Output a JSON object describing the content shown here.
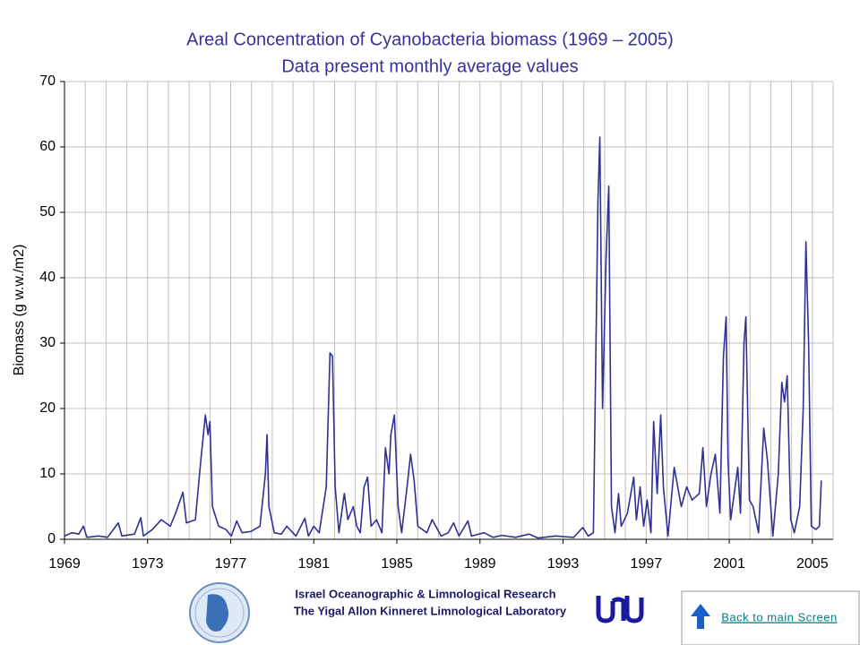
{
  "chart_data": {
    "type": "line",
    "title": "Areal Concentration of Cyanobacteria biomass (1969 – 2005)",
    "subtitle": "Data present monthly average values",
    "ylabel": "Biomass (g w.w./m2)",
    "xlim": [
      1969,
      2006
    ],
    "ylim": [
      0,
      70
    ],
    "xticks": [
      1969,
      1973,
      1977,
      1981,
      1985,
      1989,
      1993,
      1997,
      2001,
      2005
    ],
    "x_minor_ticks": [
      1969,
      1970,
      1971,
      1972,
      1973,
      1974,
      1975,
      1976,
      1977,
      1978,
      1979,
      1980,
      1981,
      1982,
      1983,
      1984,
      1985,
      1986,
      1987,
      1988,
      1989,
      1990,
      1991,
      1992,
      1993,
      1994,
      1995,
      1996,
      1997,
      1998,
      1999,
      2000,
      2001,
      2002,
      2003,
      2004,
      2005,
      2006
    ],
    "yticks": [
      0,
      10,
      20,
      30,
      40,
      50,
      60,
      70
    ],
    "grid": true,
    "x": [
      1969.0,
      1969.35,
      1969.69,
      1969.91,
      1970.08,
      1970.64,
      1971.07,
      1971.59,
      1971.76,
      1972.37,
      1972.67,
      1972.8,
      1973.23,
      1973.66,
      1974.09,
      1974.35,
      1974.7,
      1974.87,
      1975.3,
      1975.56,
      1975.78,
      1975.91,
      1976.0,
      1976.12,
      1976.42,
      1976.77,
      1977.03,
      1977.29,
      1977.55,
      1977.98,
      1978.41,
      1978.67,
      1978.75,
      1978.84,
      1979.1,
      1979.44,
      1979.7,
      1980.14,
      1980.57,
      1980.74,
      1981.0,
      1981.26,
      1981.6,
      1981.78,
      1981.9,
      1982.03,
      1982.21,
      1982.47,
      1982.64,
      1982.9,
      1983.07,
      1983.24,
      1983.42,
      1983.59,
      1983.76,
      1984.02,
      1984.28,
      1984.45,
      1984.62,
      1984.71,
      1984.88,
      1985.06,
      1985.23,
      1985.49,
      1985.66,
      1985.83,
      1986.01,
      1986.44,
      1986.7,
      1986.87,
      1987.13,
      1987.47,
      1987.73,
      1987.99,
      1988.42,
      1988.59,
      1989.2,
      1989.63,
      1990.06,
      1990.71,
      1991.36,
      1991.79,
      1992.65,
      1993.51,
      1993.95,
      1994.21,
      1994.46,
      1994.68,
      1994.77,
      1994.9,
      1995.07,
      1995.2,
      1995.33,
      1995.5,
      1995.67,
      1995.8,
      1996.1,
      1996.4,
      1996.53,
      1996.71,
      1996.88,
      1997.05,
      1997.23,
      1997.36,
      1997.53,
      1997.7,
      1997.83,
      1998.05,
      1998.35,
      1998.52,
      1998.69,
      1998.95,
      1999.21,
      1999.56,
      1999.73,
      1999.9,
      2000.12,
      2000.33,
      2000.55,
      2000.72,
      2000.85,
      2000.94,
      2001.07,
      2001.28,
      2001.41,
      2001.54,
      2001.71,
      2001.8,
      2001.97,
      2002.15,
      2002.41,
      2002.66,
      2002.84,
      2003.1,
      2003.36,
      2003.53,
      2003.66,
      2003.79,
      2003.96,
      2004.13,
      2004.39,
      2004.56,
      2004.69,
      2004.82,
      2004.95,
      2005.17,
      2005.34,
      2005.43
    ],
    "series": [
      {
        "color": "#2e3192",
        "values": [
          0.5,
          1,
          0.8,
          2,
          0.3,
          0.5,
          0.3,
          2.5,
          0.5,
          0.8,
          3.3,
          0.5,
          1.5,
          3,
          2,
          4,
          7.2,
          2.5,
          3,
          12,
          19,
          16,
          18,
          5,
          2,
          1.5,
          0.5,
          2.8,
          1,
          1.2,
          2,
          10,
          16,
          5,
          1,
          0.8,
          2,
          0.5,
          3.2,
          0.5,
          2,
          1,
          8,
          28.5,
          28,
          8,
          1,
          7,
          3,
          5,
          2,
          1,
          8,
          9.5,
          2,
          3,
          1,
          14,
          10,
          16,
          19,
          5,
          1,
          8,
          13,
          9,
          2,
          1,
          3,
          2,
          0.5,
          1,
          2.5,
          0.5,
          2.8,
          0.5,
          1,
          0.3,
          0.6,
          0.3,
          0.8,
          0.2,
          0.5,
          0.3,
          1.8,
          0.5,
          1,
          52,
          61.5,
          20,
          43,
          54,
          5,
          1,
          7,
          2,
          4,
          9.5,
          3,
          8,
          2,
          6,
          1,
          18,
          7,
          19,
          8,
          0.5,
          11,
          8,
          5,
          8,
          6,
          7,
          14,
          5,
          10,
          13,
          4,
          28,
          34,
          12,
          3,
          8,
          11,
          4,
          30,
          34,
          6,
          5,
          1,
          17,
          12,
          0.5,
          10,
          24,
          21,
          25,
          3,
          1,
          5,
          20,
          45.5,
          30,
          2,
          1.5,
          2,
          9
        ]
      }
    ]
  },
  "footer": {
    "lines": [
      "Israel Oceanographic & Limnological Research",
      "The Yigal Allon Kinneret Limnological Laboratory"
    ],
    "link": "Back to main Screen"
  }
}
